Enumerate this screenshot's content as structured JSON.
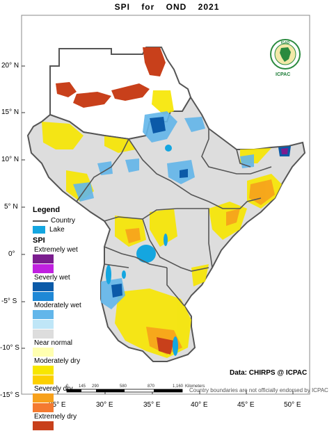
{
  "title": {
    "part1": "SPI",
    "part2": "for",
    "part3": "OND",
    "part4": "2021"
  },
  "axes": {
    "lat_labels": [
      "20° N",
      "15° N",
      "10° N",
      "5° N",
      "0°",
      "-5° S",
      "-10° S",
      "-15° S"
    ],
    "lon_labels": [
      "25° E",
      "30° E",
      "35° E",
      "40° E",
      "45° E",
      "50° E"
    ]
  },
  "legend": {
    "title": "Legend",
    "country_label": "Country",
    "lake_label": "Lake",
    "spi_title": "SPI",
    "classes": [
      {
        "label": "Extremely wet",
        "color": "#7b1d8f"
      },
      {
        "label": "Severly wet",
        "color": "#0b5aa8"
      },
      {
        "label": "Moderately wet",
        "color": "#62b6ea"
      },
      {
        "label": "Near normal",
        "color": "#dddddd"
      },
      {
        "label": "Moderately dry",
        "color": "#f7e600"
      },
      {
        "label": "Severely dry",
        "color": "#f7a11c"
      },
      {
        "label": "Extremely dry",
        "color": "#c8401b"
      }
    ],
    "extra_colors": {
      "severly_wet_alt": "#c020e0",
      "moderately_wet_alt": "#bfe6f7",
      "near_normal_alt": "#ffffb0",
      "severely_dry_alt": "#fcd000",
      "extremely_dry_alt": "#f47a30"
    }
  },
  "scale_bar": {
    "ticks": [
      "0",
      "145",
      "290",
      "580",
      "870",
      "1,160"
    ],
    "unit": "Kilometers"
  },
  "logo": {
    "acronym": "IGAD",
    "name": "ICPAC"
  },
  "credit": "Data: CHIRPS @ ICPAC",
  "disclaimer": "Country boundaries are not officially endorsed by ICPAC",
  "colors": {
    "land_normal": "#dddddd",
    "country_border": "#555555",
    "lake": "#14a6e0"
  }
}
